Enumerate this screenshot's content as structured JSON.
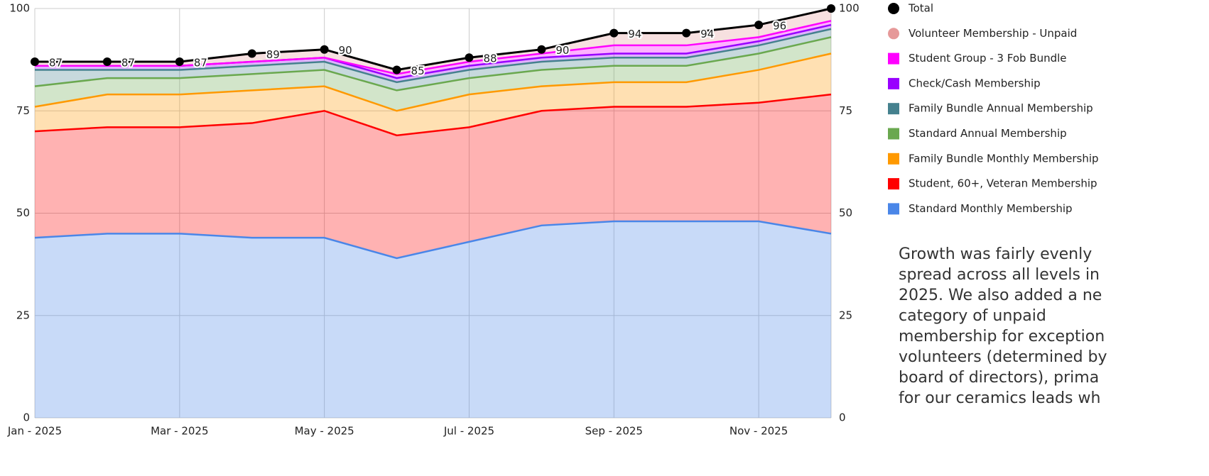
{
  "chart_data": {
    "type": "stacked_area",
    "x": [
      "Jan - 2025",
      null,
      "Mar - 2025",
      null,
      "May - 2025",
      null,
      "Jul - 2025",
      null,
      "Sep - 2025",
      null,
      "Nov - 2025",
      null
    ],
    "series": [
      {
        "name": "Standard Monthly Membership",
        "color": "#4a86e8",
        "values": [
          44,
          45,
          45,
          44,
          44,
          39,
          43,
          47,
          48,
          48,
          48,
          45
        ]
      },
      {
        "name": "Student, 60+, Veteran Membership",
        "color": "#ff0000",
        "values": [
          26,
          26,
          26,
          28,
          31,
          30,
          28,
          28,
          28,
          28,
          29,
          34
        ]
      },
      {
        "name": "Family Bundle Monthly Membership",
        "color": "#ff9900",
        "values": [
          6,
          8,
          8,
          8,
          6,
          6,
          8,
          6,
          6,
          6,
          8,
          10
        ]
      },
      {
        "name": "Standard Annual Membership",
        "color": "#6aa84f",
        "values": [
          5,
          4,
          4,
          4,
          4,
          5,
          4,
          4,
          4,
          4,
          4,
          4
        ]
      },
      {
        "name": "Family Bundle Annual Membership",
        "color": "#45818e",
        "values": [
          4,
          2,
          2,
          2,
          2,
          2,
          2,
          2,
          2,
          2,
          2,
          2
        ]
      },
      {
        "name": "Check/Cash Membership",
        "color": "#9900ff",
        "values": [
          1,
          1,
          1,
          1,
          1,
          1,
          1,
          1,
          1,
          1,
          1,
          1
        ]
      },
      {
        "name": "Student Group - 3 Fob Bundle",
        "color": "#ff00ff",
        "values": [
          0,
          0,
          0,
          0,
          0,
          1,
          1,
          1,
          2,
          2,
          1,
          1
        ]
      },
      {
        "name": "Volunteer Membership - Unpaid",
        "color": "#e69999",
        "values": [
          1,
          1,
          1,
          2,
          2,
          1,
          1,
          1,
          3,
          3,
          3,
          3
        ]
      }
    ],
    "total": {
      "name": "Total",
      "color": "#000000",
      "values": [
        87,
        87,
        87,
        89,
        90,
        85,
        88,
        90,
        94,
        94,
        96,
        100
      ]
    },
    "ylim": [
      0,
      100
    ],
    "yticks": [
      0,
      25,
      50,
      75,
      100
    ],
    "y2lim": [
      0,
      100
    ],
    "y2ticks": [
      0,
      25,
      50,
      75,
      100
    ],
    "grid": true,
    "legend": "right"
  },
  "note": {
    "lines": [
      "Growth was fairly evenly",
      "spread across all levels in",
      "2025. We also added a ne",
      "category of unpaid",
      "membership for exception",
      "volunteers (determined by",
      "board of directors), prima",
      "for our ceramics leads wh"
    ]
  }
}
